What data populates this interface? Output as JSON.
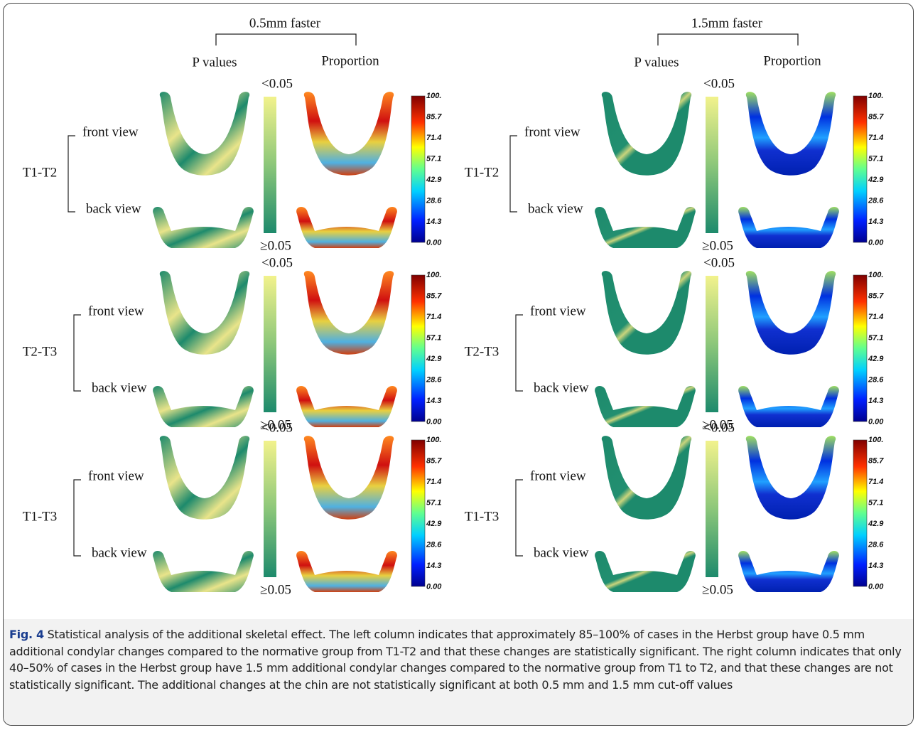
{
  "panels": [
    {
      "title": "0.5mm faster",
      "columns": [
        "P values",
        "Proportion"
      ],
      "rows": [
        {
          "label": "T1-T2",
          "views": [
            "front view",
            "back view"
          ],
          "pvalue_scale": [
            "<0.05",
            "≥0.05"
          ],
          "proportion_scale": [
            "100.",
            "85.7",
            "71.4",
            "57.1",
            "42.9",
            "28.6",
            "14.3",
            "0.00"
          ]
        },
        {
          "label": "T2-T3",
          "views": [
            "front view",
            "back view"
          ],
          "pvalue_scale": [
            "<0.05",
            "≥0.05"
          ],
          "proportion_scale": [
            "100.",
            "85.7",
            "71.4",
            "57.1",
            "42.9",
            "28.6",
            "14.3",
            "0.00"
          ]
        },
        {
          "label": "T1-T3",
          "views": [
            "front view",
            "back view"
          ],
          "pvalue_scale": [
            "<0.05",
            "≥0.05"
          ],
          "proportion_scale": [
            "100.",
            "85.7",
            "71.4",
            "57.1",
            "42.9",
            "28.6",
            "14.3",
            "0.00"
          ]
        }
      ]
    },
    {
      "title": "1.5mm faster",
      "columns": [
        "P values",
        "Proportion"
      ],
      "rows": [
        {
          "label": "T1-T2",
          "views": [
            "front view",
            "back view"
          ],
          "pvalue_scale": [
            "<0.05",
            "≥0.05"
          ],
          "proportion_scale": [
            "100.",
            "85.7",
            "71.4",
            "57.1",
            "42.9",
            "28.6",
            "14.3",
            "0.00"
          ]
        },
        {
          "label": "T2-T3",
          "views": [
            "front view",
            "back view"
          ],
          "pvalue_scale": [
            "<0.05",
            "≥0.05"
          ],
          "proportion_scale": [
            "100.",
            "85.7",
            "71.4",
            "57.1",
            "42.9",
            "28.6",
            "14.3",
            "0.00"
          ]
        },
        {
          "label": "T1-T3",
          "views": [
            "front view",
            "back view"
          ],
          "pvalue_scale": [
            "<0.05",
            "≥0.05"
          ],
          "proportion_scale": [
            "100.",
            "85.7",
            "71.4",
            "57.1",
            "42.9",
            "28.6",
            "14.3",
            "0.00"
          ]
        }
      ]
    }
  ],
  "caption": {
    "label": "Fig. 4",
    "text": " Statistical analysis of the additional skeletal effect. The left column indicates that approximately 85–100% of cases in the Herbst group have 0.5 mm additional condylar changes compared to the normative group from T1-T2 and that these changes are statistically significant. The right column indicates that only 40–50% of cases in the Herbst group have 1.5 mm additional condylar changes compared to the normative group from T1 to T2, and that these changes are not statistically significant. The additional changes at the chin are not statistically significant at both 0.5 mm and 1.5 mm cut-off values"
  }
}
